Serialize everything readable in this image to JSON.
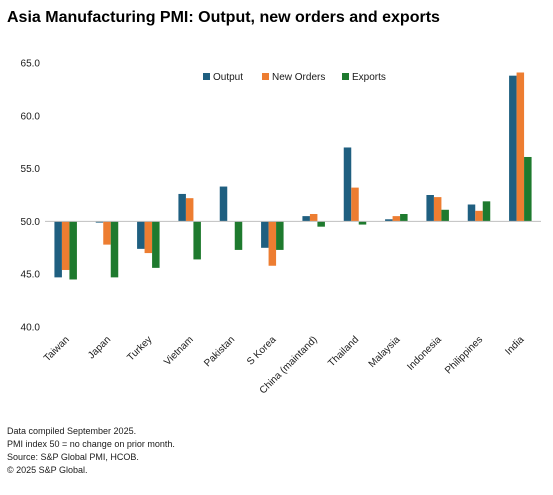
{
  "header": {
    "title": "Asia Manufacturing PMI: Output, new orders and exports"
  },
  "footer": {
    "lines": [
      "Data compiled September 2025.",
      "PMI index 50 = no change on prior month.",
      "Source: S&P Global PMI, HCOB.",
      "© 2025 S&P Global."
    ]
  },
  "chart_data": {
    "type": "bar",
    "title": "Asia Manufacturing PMI: Output, new orders and exports",
    "baseline": 50,
    "ylim": [
      40,
      65
    ],
    "yticks": [
      "40.0",
      "45.0",
      "50.0",
      "55.0",
      "60.0",
      "65.0"
    ],
    "grid": false,
    "legend_position": "top-center",
    "categories": [
      "Taiwan",
      "Japan",
      "Turkey",
      "Vietnam",
      "Pakistan",
      "S Korea",
      "China (maintand)",
      "Thailand",
      "Malaysia",
      "Indonesia",
      "Philippines",
      "India"
    ],
    "series": [
      {
        "name": "Output",
        "color": "#1f5f80",
        "values": [
          44.7,
          49.9,
          47.4,
          52.6,
          53.3,
          47.5,
          50.5,
          57.0,
          50.2,
          52.5,
          51.6,
          63.8
        ]
      },
      {
        "name": "New Orders",
        "color": "#ed7d31",
        "values": [
          45.4,
          47.8,
          47.0,
          52.2,
          null,
          45.8,
          50.7,
          53.2,
          50.5,
          52.3,
          51.0,
          64.1
        ]
      },
      {
        "name": "Exports",
        "color": "#1e7a2e",
        "values": [
          44.5,
          44.7,
          45.6,
          46.4,
          47.3,
          47.3,
          49.5,
          49.7,
          50.7,
          51.1,
          51.9,
          56.1
        ]
      }
    ]
  }
}
